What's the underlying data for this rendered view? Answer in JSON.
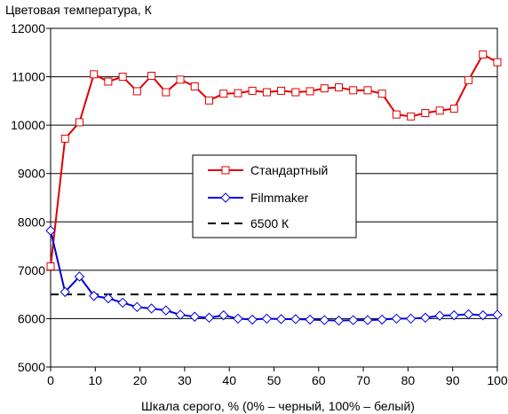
{
  "chart_data": {
    "type": "line",
    "title": "Цветовая температура, К",
    "xlabel": "Шкала серого, % (0% – черный, 100% – белый)",
    "ylabel": "",
    "xlim": [
      0,
      100
    ],
    "ylim": [
      5000,
      12000
    ],
    "x_ticks": [
      0,
      10,
      20,
      30,
      40,
      50,
      60,
      70,
      80,
      90,
      100
    ],
    "y_ticks": [
      5000,
      6000,
      7000,
      8000,
      9000,
      10000,
      11000,
      12000
    ],
    "grid": "horizontal",
    "legend_position": "center",
    "x": [
      0,
      3.23,
      6.45,
      9.68,
      12.9,
      16.13,
      19.35,
      22.58,
      25.81,
      29.03,
      32.26,
      35.48,
      38.71,
      41.94,
      45.16,
      48.39,
      51.61,
      54.84,
      58.06,
      61.29,
      64.52,
      67.74,
      70.97,
      74.19,
      77.42,
      80.65,
      83.87,
      87.1,
      90.32,
      93.55,
      96.77,
      100
    ],
    "series": [
      {
        "name": "Стандартный",
        "color": "#e00000",
        "marker": "square",
        "values": [
          7080,
          9720,
          10060,
          11050,
          10900,
          11000,
          10700,
          11020,
          10680,
          10940,
          10800,
          10510,
          10650,
          10660,
          10710,
          10680,
          10710,
          10680,
          10700,
          10760,
          10780,
          10720,
          10720,
          10650,
          10220,
          10180,
          10250,
          10300,
          10340,
          10930,
          11460,
          11300
        ]
      },
      {
        "name": "Filmmaker",
        "color": "#0000e0",
        "marker": "diamond",
        "values": [
          7820,
          6550,
          6870,
          6470,
          6420,
          6330,
          6240,
          6210,
          6170,
          6080,
          6040,
          6020,
          6070,
          6000,
          5980,
          6000,
          5990,
          5990,
          5980,
          5970,
          5960,
          5970,
          5970,
          5980,
          6000,
          6000,
          6020,
          6060,
          6070,
          6090,
          6070,
          6080
        ]
      }
    ],
    "reference_line": {
      "name": "6500 К",
      "value": 6500,
      "color": "#000000",
      "style": "dashed"
    }
  }
}
